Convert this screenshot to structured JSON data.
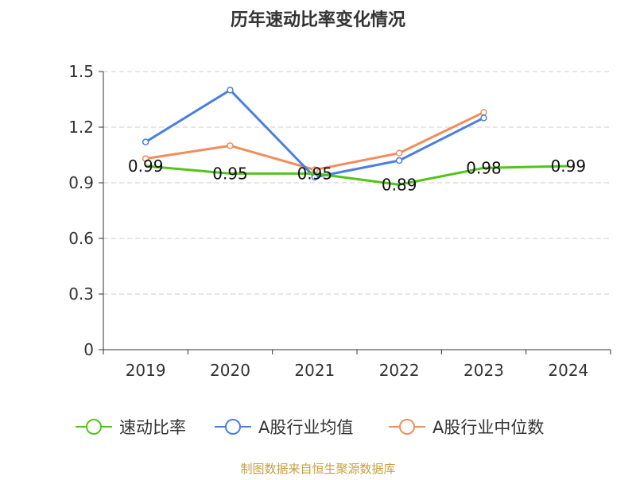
{
  "chart_data": {
    "type": "line",
    "title": "历年速动比率变化情况",
    "categories": [
      "2019",
      "2020",
      "2021",
      "2022",
      "2023",
      "2024"
    ],
    "y_ticks": [
      "0",
      "0.3",
      "0.6",
      "0.9",
      "1.2",
      "1.5"
    ],
    "ylim": [
      0,
      1.5
    ],
    "grid": true,
    "legend_position": "bottom",
    "series": [
      {
        "name": "速动比率",
        "color": "#52c41a",
        "values": [
          0.99,
          0.95,
          0.95,
          0.89,
          0.98,
          0.99
        ],
        "labels": [
          "0.99",
          "0.95",
          "0.95",
          "0.89",
          "0.98",
          "0.99"
        ]
      },
      {
        "name": "A股行业均值",
        "color": "#4a7fe0",
        "values": [
          1.12,
          1.4,
          0.93,
          1.02,
          1.25,
          null
        ]
      },
      {
        "name": "A股行业中位数",
        "color": "#f28c5a",
        "values": [
          1.03,
          1.1,
          0.97,
          1.06,
          1.28,
          null
        ]
      }
    ],
    "source": "制图数据来自恒生聚源数据库"
  }
}
